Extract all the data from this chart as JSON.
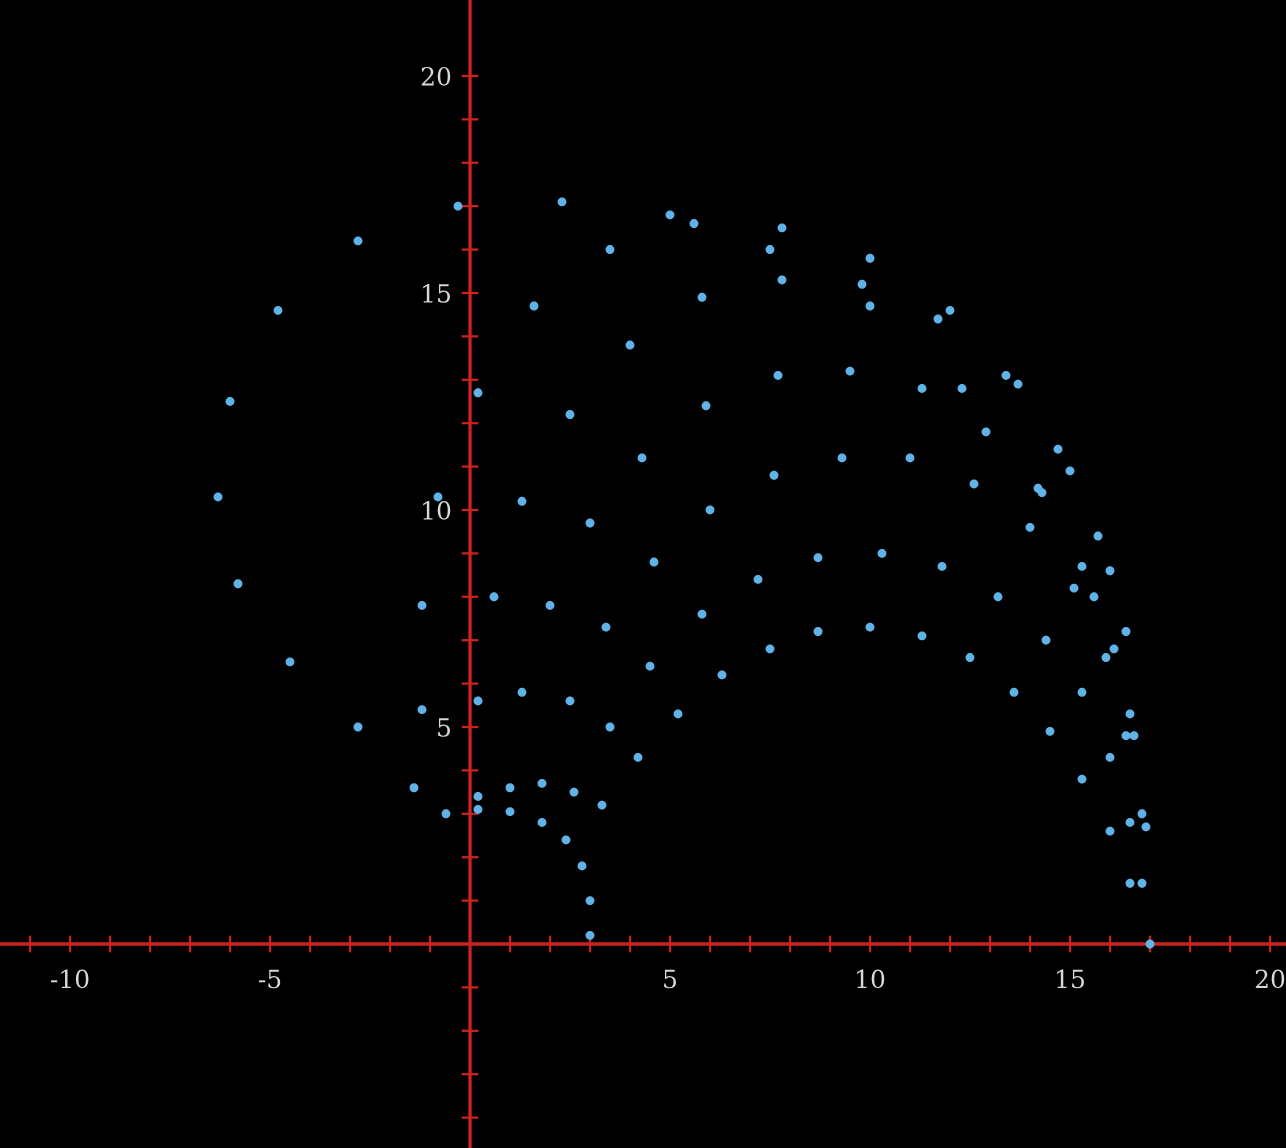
{
  "chart_data": {
    "type": "scatter",
    "marker": "circle",
    "grid": false,
    "xlim": [
      -11.75,
      20.4
    ],
    "ylim": [
      -4.7,
      21.75
    ],
    "xticks": [
      {
        "value": -11,
        "label": null
      },
      {
        "value": -10,
        "label": "-10"
      },
      {
        "value": -9,
        "label": null
      },
      {
        "value": -8,
        "label": null
      },
      {
        "value": -7,
        "label": null
      },
      {
        "value": -6,
        "label": null
      },
      {
        "value": -5,
        "label": "-5"
      },
      {
        "value": -4,
        "label": null
      },
      {
        "value": -3,
        "label": null
      },
      {
        "value": -2,
        "label": null
      },
      {
        "value": -1,
        "label": null
      },
      {
        "value": 1,
        "label": null
      },
      {
        "value": 2,
        "label": null
      },
      {
        "value": 3,
        "label": null
      },
      {
        "value": 4,
        "label": null
      },
      {
        "value": 5,
        "label": "5"
      },
      {
        "value": 6,
        "label": null
      },
      {
        "value": 7,
        "label": null
      },
      {
        "value": 8,
        "label": null
      },
      {
        "value": 9,
        "label": null
      },
      {
        "value": 10,
        "label": "10"
      },
      {
        "value": 11,
        "label": null
      },
      {
        "value": 12,
        "label": null
      },
      {
        "value": 13,
        "label": null
      },
      {
        "value": 14,
        "label": null
      },
      {
        "value": 15,
        "label": "15"
      },
      {
        "value": 16,
        "label": null
      },
      {
        "value": 17,
        "label": null
      },
      {
        "value": 18,
        "label": null
      },
      {
        "value": 19,
        "label": null
      },
      {
        "value": 20,
        "label": "20"
      }
    ],
    "yticks": [
      {
        "value": -4,
        "label": null
      },
      {
        "value": -3,
        "label": null
      },
      {
        "value": -2,
        "label": null
      },
      {
        "value": -1,
        "label": null
      },
      {
        "value": 1,
        "label": null
      },
      {
        "value": 2,
        "label": null
      },
      {
        "value": 3,
        "label": null
      },
      {
        "value": 4,
        "label": null
      },
      {
        "value": 5,
        "label": "5"
      },
      {
        "value": 6,
        "label": null
      },
      {
        "value": 7,
        "label": null
      },
      {
        "value": 8,
        "label": null
      },
      {
        "value": 9,
        "label": null
      },
      {
        "value": 10,
        "label": "10"
      },
      {
        "value": 11,
        "label": null
      },
      {
        "value": 12,
        "label": null
      },
      {
        "value": 13,
        "label": null
      },
      {
        "value": 14,
        "label": null
      },
      {
        "value": 15,
        "label": "15"
      },
      {
        "value": 16,
        "label": null
      },
      {
        "value": 17,
        "label": null
      },
      {
        "value": 18,
        "label": null
      },
      {
        "value": 19,
        "label": null
      },
      {
        "value": 20,
        "label": "20"
      }
    ],
    "series": [
      {
        "color": "#5fb3e8",
        "x": [
          3.0,
          3.0,
          2.8,
          2.4,
          1.8,
          1.0,
          0.2,
          -0.6,
          3.3,
          4.2,
          5.2,
          6.3,
          7.5,
          8.7,
          10.0,
          11.3,
          12.5,
          13.6,
          14.5,
          15.3,
          16.0,
          16.5,
          17.0,
          2.6,
          3.5,
          4.5,
          5.8,
          7.2,
          8.7,
          10.3,
          11.8,
          13.2,
          14.4,
          15.3,
          16.0,
          16.5,
          16.8,
          1.8,
          2.5,
          3.4,
          4.6,
          6.0,
          7.6,
          9.3,
          11.0,
          12.6,
          14.0,
          15.1,
          15.9,
          16.4,
          16.8,
          1.0,
          1.3,
          2.0,
          3.0,
          4.3,
          5.9,
          7.7,
          9.5,
          11.3,
          12.9,
          14.3,
          15.3,
          16.1,
          16.6,
          0.2,
          0.2,
          0.6,
          1.3,
          2.5,
          4.0,
          5.8,
          7.8,
          9.8,
          11.7,
          13.4,
          14.7,
          15.7,
          16.4,
          -1.2,
          -1.2,
          -0.8,
          0.2,
          1.6,
          3.5,
          5.6,
          7.8,
          10.0,
          12.0,
          13.7,
          15.0,
          16.0,
          -1.4,
          -2.8,
          -4.5,
          -5.8,
          -6.3,
          -6.0,
          -4.8,
          -2.8,
          -0.3,
          2.3,
          5.0,
          7.5,
          10.0,
          12.3,
          14.2,
          15.6,
          16.5,
          16.9
        ],
        "values": [
          0.2,
          1.0,
          1.8,
          2.4,
          2.8,
          3.05,
          3.1,
          3.0,
          3.2,
          4.3,
          5.3,
          6.2,
          6.8,
          7.2,
          7.3,
          7.1,
          6.6,
          5.8,
          4.9,
          3.8,
          2.6,
          1.4,
          0.0,
          3.5,
          5.0,
          6.4,
          7.6,
          8.4,
          8.9,
          9.0,
          8.7,
          8.0,
          7.0,
          5.8,
          4.3,
          2.8,
          1.4,
          3.7,
          5.6,
          7.3,
          8.8,
          10.0,
          10.8,
          11.2,
          11.2,
          10.6,
          9.6,
          8.2,
          6.6,
          4.8,
          3.0,
          3.6,
          5.8,
          7.8,
          9.7,
          11.2,
          12.4,
          13.1,
          13.2,
          12.8,
          11.8,
          10.4,
          8.7,
          6.8,
          4.8,
          3.4,
          5.6,
          8.0,
          10.2,
          12.2,
          13.8,
          14.9,
          15.3,
          15.2,
          14.4,
          13.1,
          11.4,
          9.4,
          7.2,
          5.4,
          7.8,
          10.3,
          12.7,
          14.7,
          16.0,
          16.6,
          16.5,
          15.8,
          14.6,
          12.9,
          10.9,
          8.6,
          3.6,
          5.0,
          6.5,
          8.3,
          10.3,
          12.5,
          14.6,
          16.2,
          17.0,
          17.1,
          16.8,
          16.0,
          14.7,
          12.8,
          10.5,
          8.0,
          5.3,
          2.7
        ]
      }
    ]
  }
}
